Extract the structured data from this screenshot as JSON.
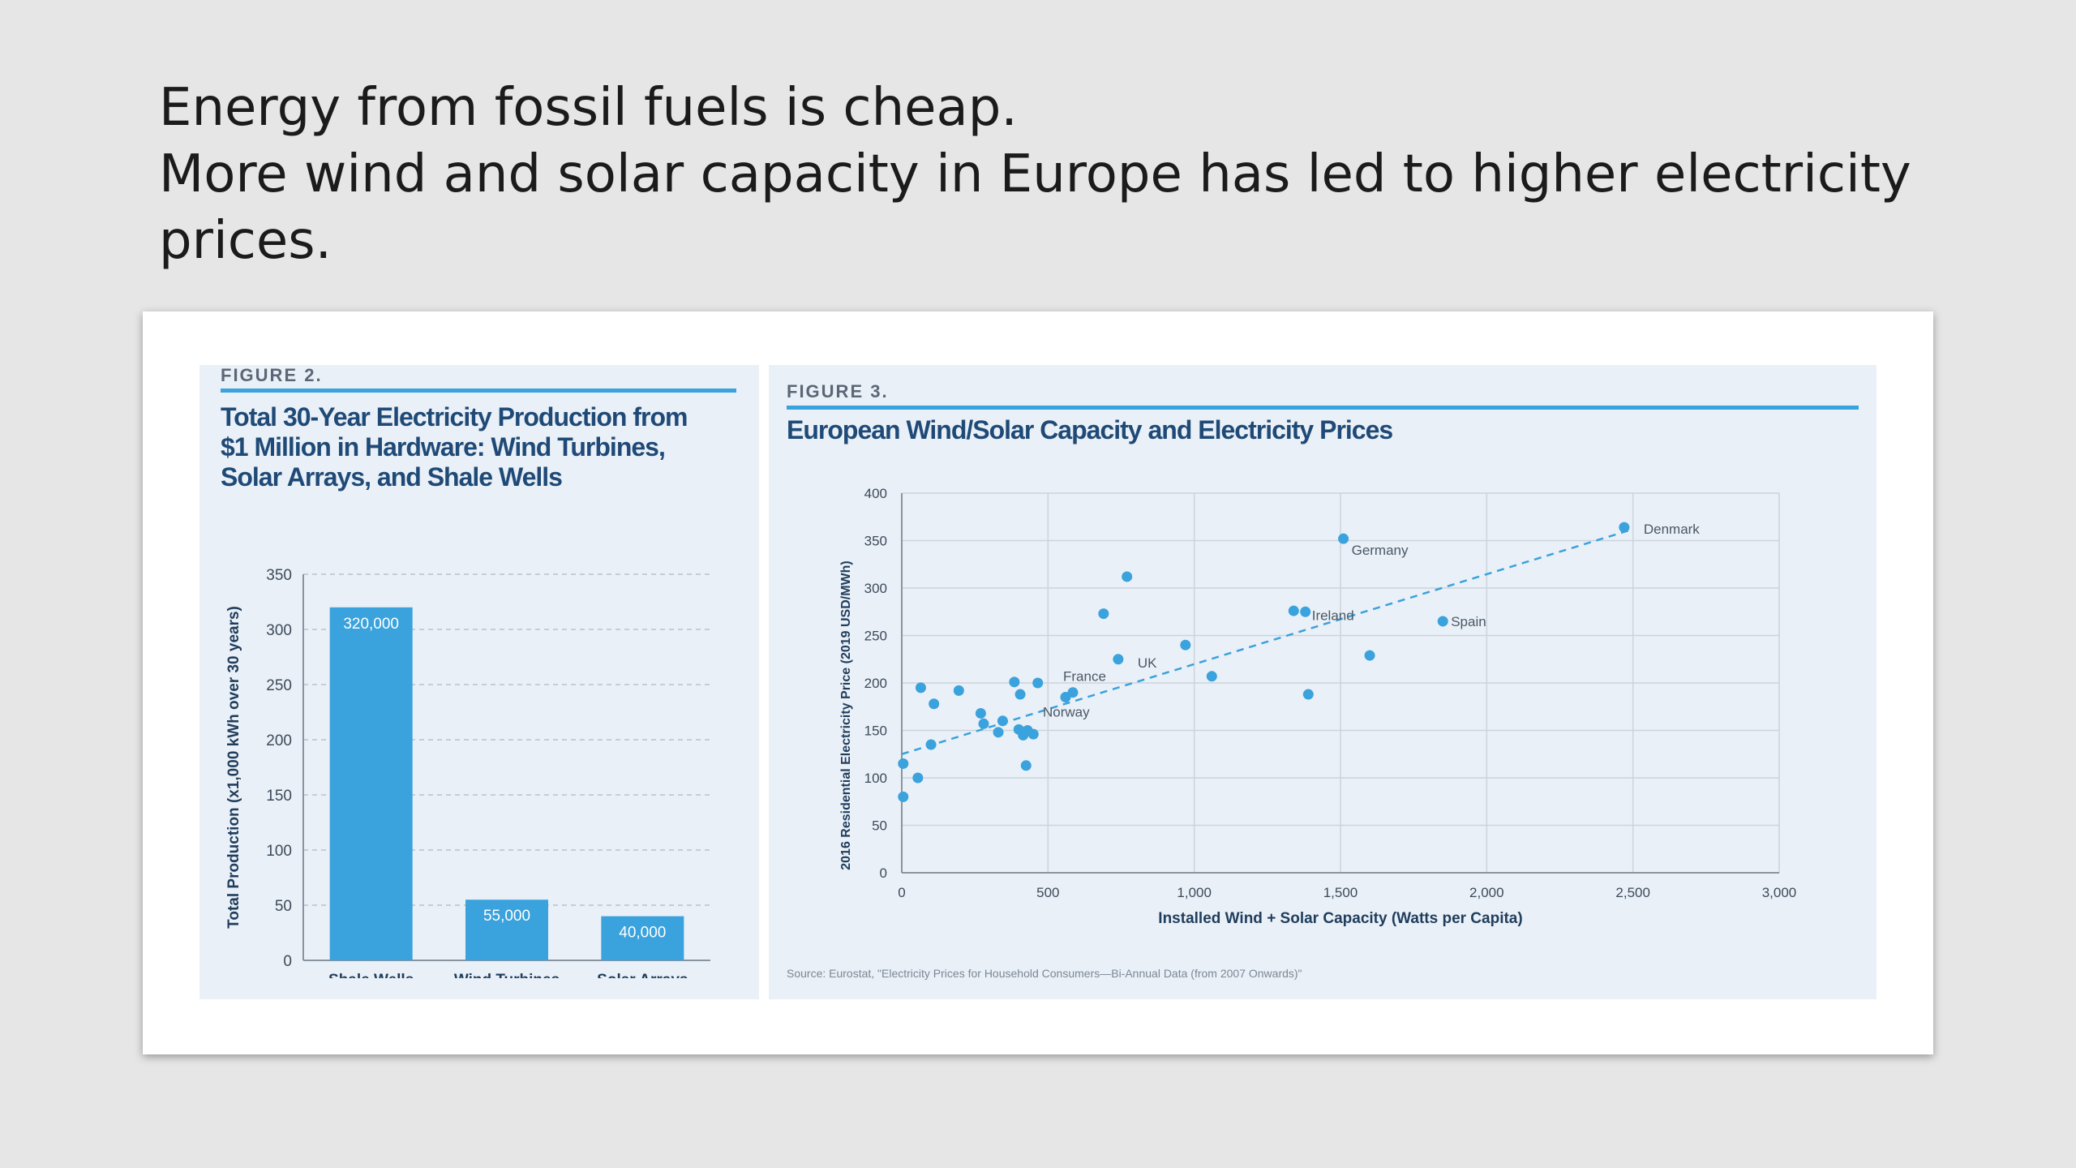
{
  "slide": {
    "title_lines": [
      "Energy from fossil fuels is cheap.",
      "More wind and solar capacity in Europe has led to higher electricity",
      "prices."
    ]
  },
  "figure2": {
    "label": "FIGURE 2.",
    "title_lines": [
      "Total 30-Year Electricity Production from",
      "$1 Million in Hardware: Wind Turbines,",
      "Solar Arrays, and Shale Wells"
    ]
  },
  "figure3": {
    "label": "FIGURE 3.",
    "title": "European Wind/Solar Capacity and Electricity Prices",
    "source": "Source: Eurostat, \"Electricity Prices for Household Consumers—Bi-Annual Data (from 2007 Onwards)\""
  },
  "colors": {
    "accent": "#3aa2dc",
    "title": "#1f4a77",
    "panel": "#eaf0f7"
  },
  "chart_data": [
    {
      "type": "bar",
      "title": "Total 30-Year Electricity Production from $1 Million in Hardware: Wind Turbines, Solar Arrays, and Shale Wells",
      "categories": [
        "Shale Wells",
        "Wind Turbines",
        "Solar Arrays"
      ],
      "values": [
        320,
        55,
        40
      ],
      "data_labels": [
        "320,000",
        "55,000",
        "40,000"
      ],
      "ylabel": "Total Production (x1,000 kWh over 30 years)",
      "xlabel": "",
      "ylim": [
        0,
        350
      ],
      "yticks": [
        0,
        50,
        100,
        150,
        200,
        250,
        300,
        350
      ],
      "grid": true
    },
    {
      "type": "scatter",
      "title": "European Wind/Solar Capacity and Electricity Prices",
      "xlabel": "Installed Wind + Solar Capacity (Watts per Capita)",
      "ylabel": "2016 Residential Electricity Price (2019 USD/MWh)",
      "xlim": [
        0,
        3000
      ],
      "ylim": [
        0,
        400
      ],
      "xticks": [
        0,
        500,
        1000,
        1500,
        2000,
        2500,
        3000
      ],
      "xtick_labels": [
        "0",
        "500",
        "1,000",
        "1,500",
        "2,000",
        "2,500",
        "3,000"
      ],
      "yticks": [
        0,
        50,
        100,
        150,
        200,
        250,
        300,
        350,
        400
      ],
      "grid": true,
      "trendline": {
        "x": [
          0,
          2500
        ],
        "y": [
          125,
          362
        ]
      },
      "points": [
        {
          "x": 2470,
          "y": 364,
          "label": "Denmark"
        },
        {
          "x": 1510,
          "y": 352,
          "label": "Germany"
        },
        {
          "x": 1380,
          "y": 275,
          "label": "Ireland"
        },
        {
          "x": 1850,
          "y": 265,
          "label": "Spain"
        },
        {
          "x": 740,
          "y": 225,
          "label": "UK"
        },
        {
          "x": 585,
          "y": 190,
          "label": "France"
        },
        {
          "x": 560,
          "y": 185,
          "label": "Norway"
        },
        {
          "x": 770,
          "y": 312,
          "label": ""
        },
        {
          "x": 690,
          "y": 273,
          "label": ""
        },
        {
          "x": 970,
          "y": 240,
          "label": ""
        },
        {
          "x": 1340,
          "y": 276,
          "label": ""
        },
        {
          "x": 1600,
          "y": 229,
          "label": ""
        },
        {
          "x": 1060,
          "y": 207,
          "label": ""
        },
        {
          "x": 1390,
          "y": 188,
          "label": ""
        },
        {
          "x": 5,
          "y": 115,
          "label": ""
        },
        {
          "x": 5,
          "y": 80,
          "label": ""
        },
        {
          "x": 55,
          "y": 100,
          "label": ""
        },
        {
          "x": 65,
          "y": 195,
          "label": ""
        },
        {
          "x": 110,
          "y": 178,
          "label": ""
        },
        {
          "x": 100,
          "y": 135,
          "label": ""
        },
        {
          "x": 195,
          "y": 192,
          "label": ""
        },
        {
          "x": 270,
          "y": 168,
          "label": ""
        },
        {
          "x": 280,
          "y": 157,
          "label": ""
        },
        {
          "x": 330,
          "y": 148,
          "label": ""
        },
        {
          "x": 345,
          "y": 160,
          "label": ""
        },
        {
          "x": 385,
          "y": 201,
          "label": ""
        },
        {
          "x": 400,
          "y": 151,
          "label": ""
        },
        {
          "x": 405,
          "y": 188,
          "label": ""
        },
        {
          "x": 415,
          "y": 145,
          "label": ""
        },
        {
          "x": 430,
          "y": 150,
          "label": ""
        },
        {
          "x": 450,
          "y": 146,
          "label": ""
        },
        {
          "x": 465,
          "y": 200,
          "label": ""
        },
        {
          "x": 425,
          "y": 113,
          "label": ""
        }
      ]
    }
  ]
}
